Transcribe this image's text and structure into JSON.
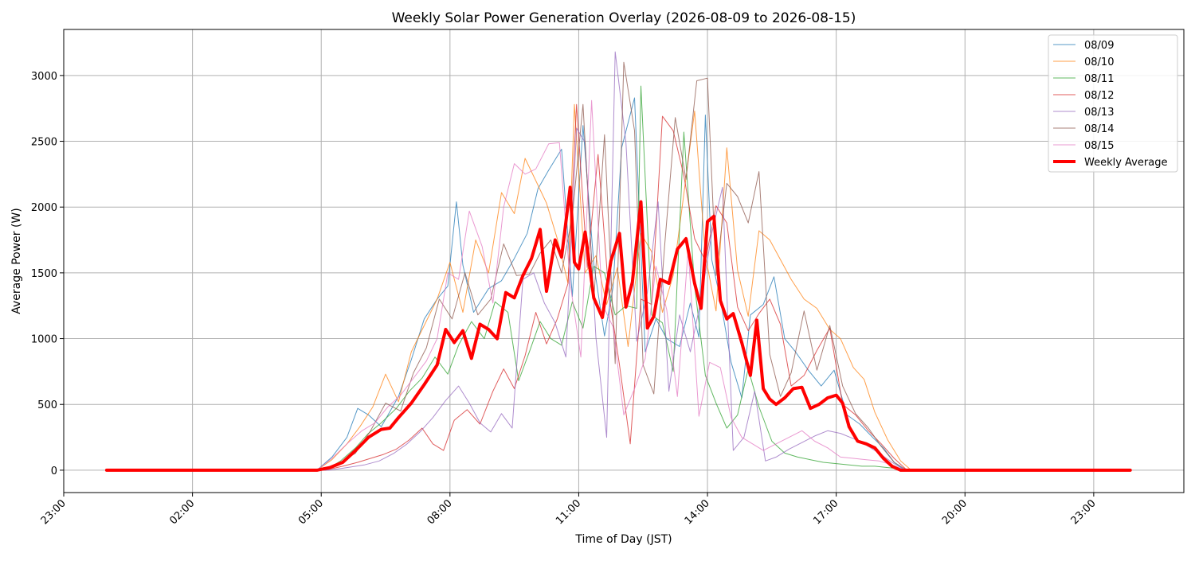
{
  "chart_data": {
    "type": "line",
    "title": "Weekly Solar Power Generation Overlay (2026-08-09 to 2026-08-15)",
    "xlabel": "Time of Day (JST)",
    "ylabel": "Average Power (W)",
    "x_unit": "hours of day",
    "xlim": [
      -1.0,
      25.1
    ],
    "ylim": [
      -170,
      3350
    ],
    "xticks": [
      {
        "value": -1,
        "label": "23:00"
      },
      {
        "value": 2,
        "label": "02:00"
      },
      {
        "value": 5,
        "label": "05:00"
      },
      {
        "value": 8,
        "label": "08:00"
      },
      {
        "value": 11,
        "label": "11:00"
      },
      {
        "value": 14,
        "label": "14:00"
      },
      {
        "value": 17,
        "label": "17:00"
      },
      {
        "value": 20,
        "label": "20:00"
      },
      {
        "value": 23,
        "label": "23:00"
      }
    ],
    "yticks": [
      {
        "value": 0,
        "label": "0"
      },
      {
        "value": 500,
        "label": "500"
      },
      {
        "value": 1000,
        "label": "1000"
      },
      {
        "value": 1500,
        "label": "1500"
      },
      {
        "value": 2000,
        "label": "2000"
      },
      {
        "value": 2500,
        "label": "2500"
      },
      {
        "value": 3000,
        "label": "3000"
      }
    ],
    "grid": true,
    "legend_position": "top-right",
    "legend": [
      "08/09",
      "08/10",
      "08/11",
      "08/12",
      "08/13",
      "08/14",
      "08/15",
      "Weekly Average"
    ],
    "series": [
      {
        "name": "08/09",
        "color": "#1f77b4",
        "thin": true,
        "x": [
          0,
          4.9,
          5.25,
          5.6,
          5.85,
          6.1,
          6.4,
          6.8,
          7.1,
          7.4,
          7.7,
          7.95,
          8.15,
          8.3,
          8.55,
          8.9,
          9.2,
          9.5,
          9.8,
          10.05,
          10.3,
          10.6,
          10.85,
          11.1,
          11.35,
          11.6,
          11.8,
          12.0,
          12.3,
          12.55,
          12.8,
          13.05,
          13.35,
          13.6,
          13.8,
          13.95,
          14.1,
          14.3,
          14.55,
          14.8,
          15.0,
          15.3,
          15.55,
          15.8,
          16.05,
          16.35,
          16.65,
          16.95,
          17.25,
          17.55,
          17.85,
          18.1,
          18.35,
          18.6,
          23.85
        ],
        "y": [
          0,
          0,
          100,
          250,
          470,
          420,
          330,
          560,
          840,
          1150,
          1300,
          1400,
          2040,
          1560,
          1200,
          1380,
          1440,
          1610,
          1800,
          2140,
          2280,
          2440,
          1320,
          2620,
          1570,
          1020,
          1390,
          2450,
          2830,
          900,
          1150,
          1000,
          940,
          1270,
          1010,
          2700,
          1600,
          1300,
          820,
          550,
          1180,
          1260,
          1470,
          1000,
          900,
          760,
          640,
          760,
          420,
          350,
          250,
          170,
          60,
          0,
          0
        ]
      },
      {
        "name": "08/10",
        "color": "#ff7f0e",
        "thin": true,
        "x": [
          0,
          4.9,
          5.25,
          5.6,
          5.9,
          6.2,
          6.5,
          6.8,
          7.1,
          7.4,
          7.7,
          8.0,
          8.3,
          8.6,
          8.9,
          9.2,
          9.5,
          9.75,
          10.0,
          10.25,
          10.5,
          10.75,
          10.9,
          11.15,
          11.4,
          11.65,
          11.9,
          12.15,
          12.45,
          12.7,
          12.95,
          13.2,
          13.45,
          13.7,
          13.95,
          14.2,
          14.45,
          14.7,
          14.95,
          15.2,
          15.45,
          15.7,
          15.95,
          16.25,
          16.55,
          16.85,
          17.1,
          17.4,
          17.65,
          17.9,
          18.2,
          18.5,
          18.75,
          23.85
        ],
        "y": [
          0,
          0,
          80,
          200,
          330,
          480,
          730,
          520,
          900,
          1100,
          1300,
          1580,
          1200,
          1750,
          1500,
          2110,
          1950,
          2370,
          2200,
          2030,
          1760,
          1420,
          2780,
          1500,
          1630,
          1260,
          1540,
          940,
          1800,
          1660,
          1200,
          1480,
          2100,
          2730,
          1630,
          1210,
          2450,
          1520,
          1170,
          1820,
          1750,
          1600,
          1450,
          1300,
          1230,
          1070,
          1000,
          780,
          690,
          440,
          230,
          70,
          0,
          0
        ]
      },
      {
        "name": "08/11",
        "color": "#2ca02c",
        "thin": true,
        "x": [
          0,
          5.1,
          5.45,
          5.8,
          6.1,
          6.4,
          6.75,
          7.05,
          7.35,
          7.65,
          7.95,
          8.2,
          8.5,
          8.8,
          9.05,
          9.35,
          9.6,
          9.85,
          10.1,
          10.35,
          10.6,
          10.85,
          11.1,
          11.35,
          11.6,
          11.85,
          12.1,
          12.35,
          12.45,
          12.7,
          12.95,
          13.2,
          13.45,
          13.7,
          13.95,
          14.2,
          14.45,
          14.7,
          14.95,
          15.2,
          15.5,
          15.8,
          16.1,
          16.4,
          16.7,
          17.0,
          17.3,
          17.6,
          17.9,
          18.2,
          18.5,
          18.75,
          23.85
        ],
        "y": [
          0,
          0,
          70,
          170,
          280,
          360,
          470,
          600,
          700,
          860,
          730,
          950,
          1130,
          1000,
          1280,
          1200,
          680,
          900,
          1130,
          1000,
          950,
          1280,
          1080,
          1550,
          1500,
          1180,
          1250,
          1230,
          2920,
          1180,
          1120,
          750,
          2570,
          1400,
          720,
          510,
          320,
          420,
          770,
          480,
          220,
          130,
          100,
          80,
          60,
          50,
          40,
          30,
          30,
          20,
          10,
          0,
          0
        ]
      },
      {
        "name": "08/12",
        "color": "#d62728",
        "thin": true,
        "x": [
          0,
          5.1,
          5.5,
          5.85,
          6.15,
          6.45,
          6.75,
          7.05,
          7.35,
          7.6,
          7.85,
          8.1,
          8.4,
          8.7,
          9.0,
          9.25,
          9.5,
          9.75,
          10.0,
          10.25,
          10.5,
          10.75,
          10.95,
          11.2,
          11.45,
          11.7,
          11.95,
          12.2,
          12.45,
          12.7,
          12.95,
          13.2,
          13.45,
          13.7,
          13.95,
          14.2,
          14.45,
          14.7,
          14.95,
          15.2,
          15.45,
          15.7,
          15.95,
          16.25,
          16.55,
          16.85,
          17.15,
          17.45,
          17.75,
          18.05,
          18.35,
          18.65,
          23.85
        ],
        "y": [
          0,
          0,
          30,
          60,
          90,
          120,
          160,
          230,
          320,
          200,
          150,
          380,
          460,
          350,
          600,
          770,
          620,
          870,
          1200,
          960,
          1150,
          1420,
          2780,
          1540,
          2400,
          1350,
          800,
          200,
          1300,
          1260,
          2690,
          2580,
          2240,
          1760,
          1590,
          2010,
          1880,
          1240,
          1060,
          1190,
          1300,
          1110,
          640,
          720,
          910,
          1080,
          500,
          420,
          300,
          200,
          90,
          0,
          0
        ]
      },
      {
        "name": "08/13",
        "color": "#9467bd",
        "thin": true,
        "x": [
          0,
          5.2,
          5.6,
          6.0,
          6.35,
          6.7,
          7.0,
          7.3,
          7.6,
          7.9,
          8.2,
          8.45,
          8.7,
          8.95,
          9.2,
          9.45,
          9.7,
          9.95,
          10.2,
          10.45,
          10.7,
          10.95,
          11.15,
          11.4,
          11.65,
          11.85,
          12.1,
          12.35,
          12.6,
          12.85,
          13.1,
          13.35,
          13.6,
          13.85,
          14.1,
          14.35,
          14.6,
          14.85,
          15.1,
          15.35,
          15.6,
          15.9,
          16.2,
          16.5,
          16.8,
          17.1,
          17.4,
          17.7,
          18.0,
          18.3,
          18.6,
          23.85
        ],
        "y": [
          0,
          0,
          20,
          40,
          70,
          130,
          200,
          290,
          400,
          530,
          640,
          510,
          360,
          290,
          430,
          320,
          1450,
          1500,
          1270,
          1120,
          860,
          2600,
          2490,
          1010,
          250,
          3180,
          2490,
          980,
          1350,
          2040,
          600,
          1180,
          900,
          1300,
          1800,
          2150,
          150,
          250,
          600,
          70,
          100,
          160,
          210,
          260,
          300,
          280,
          240,
          190,
          130,
          60,
          0,
          0
        ]
      },
      {
        "name": "08/14",
        "color": "#8c564b",
        "thin": true,
        "x": [
          0,
          5.0,
          5.4,
          5.8,
          6.15,
          6.5,
          6.85,
          7.15,
          7.45,
          7.75,
          8.05,
          8.35,
          8.65,
          8.95,
          9.25,
          9.55,
          9.85,
          10.1,
          10.35,
          10.6,
          10.85,
          11.1,
          11.35,
          11.6,
          11.85,
          12.05,
          12.3,
          12.5,
          12.75,
          13.0,
          13.25,
          13.5,
          13.75,
          14.0,
          14.2,
          14.45,
          14.7,
          14.95,
          15.2,
          15.45,
          15.7,
          15.95,
          16.25,
          16.55,
          16.85,
          17.15,
          17.45,
          17.75,
          18.05,
          18.35,
          18.65,
          23.85
        ],
        "y": [
          0,
          0,
          50,
          130,
          300,
          510,
          450,
          740,
          930,
          1300,
          1150,
          1500,
          1180,
          1300,
          1720,
          1480,
          1490,
          1650,
          1750,
          1500,
          1930,
          2780,
          1290,
          2550,
          810,
          3100,
          2580,
          800,
          580,
          1700,
          2680,
          2210,
          2960,
          2980,
          1480,
          2180,
          2080,
          1880,
          2270,
          880,
          560,
          740,
          1210,
          760,
          1100,
          640,
          430,
          320,
          180,
          60,
          0,
          0
        ]
      },
      {
        "name": "08/15",
        "color": "#e377c2",
        "thin": true,
        "x": [
          0,
          4.9,
          5.25,
          5.6,
          5.95,
          6.25,
          6.55,
          6.85,
          7.15,
          7.45,
          7.7,
          7.95,
          8.2,
          8.45,
          8.75,
          9.0,
          9.25,
          9.5,
          9.75,
          10.0,
          10.3,
          10.55,
          10.8,
          11.05,
          11.3,
          11.55,
          11.8,
          12.05,
          12.3,
          12.55,
          12.8,
          13.05,
          13.3,
          13.55,
          13.8,
          14.05,
          14.3,
          14.55,
          14.8,
          15.05,
          15.3,
          15.6,
          15.9,
          16.2,
          16.5,
          16.8,
          17.1,
          17.4,
          17.7,
          18.0,
          18.3,
          18.6,
          23.85
        ],
        "y": [
          0,
          0,
          90,
          200,
          300,
          360,
          480,
          570,
          700,
          830,
          1000,
          1500,
          1450,
          1970,
          1700,
          1270,
          2000,
          2330,
          2250,
          2290,
          2480,
          2490,
          1420,
          860,
          2810,
          1260,
          1090,
          420,
          620,
          850,
          1550,
          1220,
          560,
          1680,
          410,
          820,
          780,
          400,
          250,
          200,
          150,
          200,
          250,
          300,
          220,
          170,
          100,
          90,
          80,
          70,
          40,
          0,
          0
        ]
      },
      {
        "name": "Weekly Average",
        "color": "#ff0000",
        "thin": false,
        "x": [
          0,
          4.9,
          5.2,
          5.5,
          5.8,
          6.1,
          6.4,
          6.6,
          6.8,
          7.1,
          7.4,
          7.7,
          7.9,
          8.1,
          8.3,
          8.5,
          8.7,
          8.9,
          9.1,
          9.3,
          9.5,
          9.7,
          9.9,
          10.1,
          10.25,
          10.45,
          10.6,
          10.8,
          10.9,
          11.0,
          11.15,
          11.35,
          11.55,
          11.75,
          11.95,
          12.1,
          12.25,
          12.45,
          12.6,
          12.75,
          12.9,
          13.1,
          13.3,
          13.5,
          13.7,
          13.85,
          14.0,
          14.15,
          14.3,
          14.45,
          14.6,
          14.8,
          15.0,
          15.15,
          15.3,
          15.45,
          15.6,
          15.8,
          16.0,
          16.2,
          16.4,
          16.6,
          16.8,
          17.0,
          17.15,
          17.3,
          17.5,
          17.7,
          17.9,
          18.1,
          18.3,
          18.5,
          18.7,
          23.85
        ],
        "y": [
          0,
          0,
          20,
          60,
          150,
          250,
          310,
          320,
          400,
          510,
          650,
          800,
          1070,
          970,
          1060,
          850,
          1110,
          1070,
          1000,
          1350,
          1310,
          1480,
          1610,
          1830,
          1360,
          1750,
          1620,
          2150,
          1580,
          1530,
          1810,
          1310,
          1160,
          1590,
          1800,
          1240,
          1430,
          2040,
          1080,
          1170,
          1450,
          1420,
          1680,
          1760,
          1420,
          1230,
          1890,
          1930,
          1290,
          1150,
          1190,
          970,
          720,
          1140,
          620,
          540,
          500,
          550,
          620,
          630,
          470,
          500,
          550,
          570,
          510,
          330,
          220,
          200,
          170,
          90,
          30,
          0,
          0,
          0
        ]
      }
    ]
  }
}
